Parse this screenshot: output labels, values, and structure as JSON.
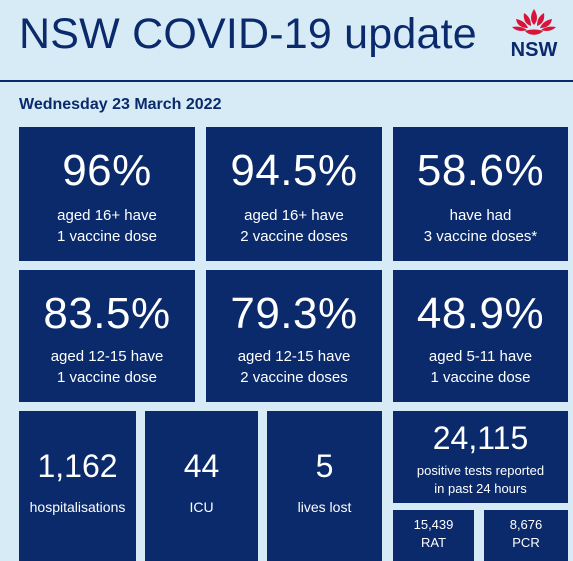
{
  "header": {
    "title": "NSW COVID-19 update",
    "logo_text": "NSW",
    "date": "Wednesday 23 March 2022"
  },
  "vaccination": [
    {
      "value": "96%",
      "line1": "aged 16+ have",
      "line2": "1 vaccine dose"
    },
    {
      "value": "94.5%",
      "line1": "aged 16+ have",
      "line2": "2 vaccine doses"
    },
    {
      "value": "58.6%",
      "line1": "have had",
      "line2": "3 vaccine doses*"
    },
    {
      "value": "83.5%",
      "line1": "aged 12-15 have",
      "line2": "1 vaccine dose"
    },
    {
      "value": "79.3%",
      "line1": "aged 12-15 have",
      "line2": "2 vaccine doses"
    },
    {
      "value": "48.9%",
      "line1": "aged 5-11 have",
      "line2": "1 vaccine dose"
    }
  ],
  "stats": {
    "hospitalisations": {
      "value": "1,162",
      "label": "hospitalisations"
    },
    "icu": {
      "value": "44",
      "label": "ICU"
    },
    "lives_lost": {
      "value": "5",
      "label": "lives lost"
    },
    "positive_tests": {
      "value": "24,115",
      "line1": "positive tests reported",
      "line2": "in past 24 hours"
    },
    "rat": {
      "value": "15,439",
      "label": "RAT"
    },
    "pcr": {
      "value": "8,676",
      "label": "PCR"
    }
  },
  "colors": {
    "background": "#d7ebf7",
    "tile": "#0b2a6b",
    "text_dark": "#0b2a6b",
    "logo_red": "#d7153a"
  },
  "icons": {
    "logo": "waratah-flower-icon"
  }
}
